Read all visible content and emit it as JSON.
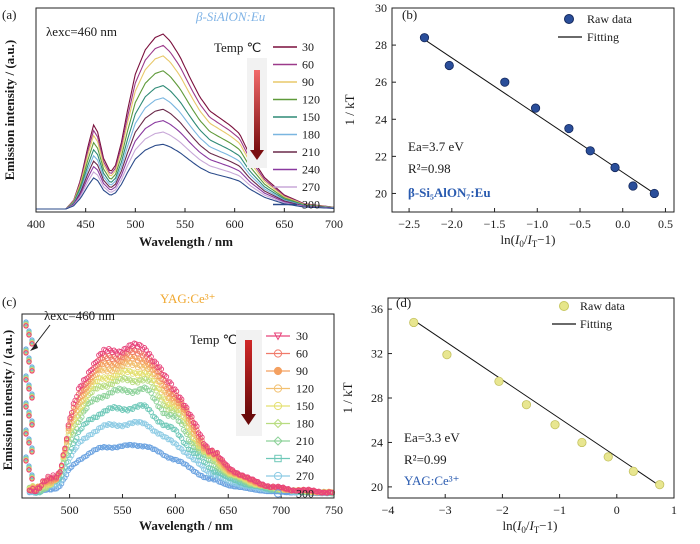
{
  "panels": {
    "a": {
      "label": "(a)",
      "material": "β-SiAlON:Eu",
      "material_color": "#7fb3e6",
      "excitation": "λexc=460 nm",
      "legend_title": "Temp ℃"
    },
    "b": {
      "label": "(b)",
      "ea": "Ea=3.7 eV",
      "r2": "R²=0.98",
      "material": "β-Si₅AlON₇:Eu",
      "material_color": "#2a5bb0",
      "legend": [
        "Raw data",
        "Fitting"
      ]
    },
    "c": {
      "label": "(c)",
      "material": "YAG:Ce³⁺",
      "material_color": "#f0a830",
      "excitation": "λexc=460 nm",
      "legend_title": "Temp ℃"
    },
    "d": {
      "label": "(d)",
      "ea": "Ea=3.3 eV",
      "r2": "R²=0.99",
      "material": "YAG:Ce³⁺",
      "material_color": "#2a5bb0",
      "legend": [
        "Raw data",
        "Fitting"
      ]
    }
  },
  "chart_data": [
    {
      "id": "a",
      "type": "line",
      "xlabel": "Wavelength / nm",
      "ylabel": "Emission intensity / (a.u.)",
      "xlim": [
        400,
        700
      ],
      "xticks": [
        400,
        450,
        500,
        550,
        600,
        650,
        700
      ],
      "series": [
        {
          "name": "30",
          "color": "#7a0f3c",
          "scale": 1.0
        },
        {
          "name": "60",
          "color": "#9c3a8a",
          "scale": 0.935
        },
        {
          "name": "90",
          "color": "#e8c86a",
          "scale": 0.875
        },
        {
          "name": "120",
          "color": "#5f9a3a",
          "scale": 0.79
        },
        {
          "name": "150",
          "color": "#2e8a76",
          "scale": 0.705
        },
        {
          "name": "180",
          "color": "#7ab6e0",
          "scale": 0.635
        },
        {
          "name": "210",
          "color": "#6a2a4a",
          "scale": 0.57
        },
        {
          "name": "240",
          "color": "#8a3aa0",
          "scale": 0.505
        },
        {
          "name": "270",
          "color": "#c8a8d8",
          "scale": 0.44
        },
        {
          "name": "300",
          "color": "#2a4a8a",
          "scale": 0.37
        }
      ],
      "profile_x": [
        400,
        430,
        438,
        445,
        452,
        458,
        462,
        468,
        475,
        480,
        486,
        492,
        500,
        510,
        520,
        528,
        535,
        545,
        555,
        565,
        575,
        585,
        595,
        605,
        615,
        630,
        650,
        670,
        700
      ],
      "profile_y": [
        0.0,
        0.0,
        0.05,
        0.17,
        0.35,
        0.48,
        0.44,
        0.29,
        0.21,
        0.25,
        0.38,
        0.56,
        0.77,
        0.91,
        0.98,
        1.0,
        0.96,
        0.87,
        0.75,
        0.64,
        0.56,
        0.52,
        0.48,
        0.43,
        0.31,
        0.18,
        0.08,
        0.03,
        0.01
      ]
    },
    {
      "id": "b",
      "type": "scatter",
      "xlabel": "ln(I0/IT−1)",
      "ylabel": "1 / kT",
      "xlim": [
        -2.7,
        0.6
      ],
      "ylim": [
        19,
        30
      ],
      "xticks": [
        -2.5,
        -2.0,
        -1.5,
        -1.0,
        -0.5,
        0.0,
        0.5
      ],
      "yticks": [
        20,
        22,
        24,
        26,
        28,
        30
      ],
      "points": [
        {
          "x": -2.32,
          "y": 28.4
        },
        {
          "x": -2.03,
          "y": 26.9
        },
        {
          "x": -1.38,
          "y": 26.0
        },
        {
          "x": -1.02,
          "y": 24.6
        },
        {
          "x": -0.63,
          "y": 23.5
        },
        {
          "x": -0.38,
          "y": 22.3
        },
        {
          "x": -0.09,
          "y": 21.4
        },
        {
          "x": 0.12,
          "y": 20.4
        },
        {
          "x": 0.37,
          "y": 20.0
        }
      ],
      "fit": [
        {
          "x": -2.32,
          "y": 28.3
        },
        {
          "x": 0.37,
          "y": 20.0
        }
      ]
    },
    {
      "id": "c",
      "type": "scatter",
      "xlabel": "Wavelength / nm",
      "ylabel": "Emission intensity / (a.u.)",
      "xlim": [
        455,
        750
      ],
      "xticks": [
        500,
        550,
        600,
        650,
        700,
        750
      ],
      "series": [
        {
          "name": "30",
          "color": "#e8437a",
          "marker": "tri",
          "scale": 1.0
        },
        {
          "name": "60",
          "color": "#f07a6a",
          "marker": "circle",
          "scale": 0.96
        },
        {
          "name": "90",
          "color": "#f4a060",
          "marker": "half",
          "scale": 0.92
        },
        {
          "name": "120",
          "color": "#f2c070",
          "marker": "circle",
          "scale": 0.88
        },
        {
          "name": "150",
          "color": "#e4e070",
          "marker": "circle",
          "scale": 0.83
        },
        {
          "name": "180",
          "color": "#b8dc80",
          "marker": "diamond",
          "scale": 0.78
        },
        {
          "name": "210",
          "color": "#8ed29a",
          "marker": "diamond",
          "scale": 0.71
        },
        {
          "name": "240",
          "color": "#6ec8b8",
          "marker": "square",
          "scale": 0.59
        },
        {
          "name": "270",
          "color": "#8ccbe4",
          "marker": "circle",
          "scale": 0.48
        },
        {
          "name": "300",
          "color": "#6aa2e0",
          "marker": "circle",
          "scale": 0.33
        }
      ],
      "profile_x": [
        462,
        470,
        478,
        485,
        490,
        495,
        500,
        510,
        520,
        530,
        540,
        550,
        560,
        570,
        575,
        580,
        590,
        600,
        605,
        615,
        630,
        650,
        670,
        690,
        710,
        730,
        750
      ],
      "profile_y": [
        0.05,
        0.03,
        0.08,
        0.12,
        0.15,
        0.3,
        0.5,
        0.72,
        0.86,
        0.94,
        0.97,
        0.98,
        0.99,
        1.0,
        0.97,
        0.9,
        0.78,
        0.72,
        0.66,
        0.5,
        0.33,
        0.18,
        0.1,
        0.05,
        0.03,
        0.02,
        0.01
      ]
    },
    {
      "id": "d",
      "type": "scatter",
      "xlabel": "ln(I0/IT−1)",
      "ylabel": "1 / kT",
      "xlim": [
        -4,
        1
      ],
      "ylim": [
        19,
        37
      ],
      "xticks": [
        -4,
        -3,
        -2,
        -1,
        0,
        1
      ],
      "yticks": [
        20,
        24,
        28,
        32,
        36
      ],
      "points": [
        {
          "x": -3.55,
          "y": 34.8
        },
        {
          "x": -2.97,
          "y": 31.9
        },
        {
          "x": -2.06,
          "y": 29.5
        },
        {
          "x": -1.58,
          "y": 27.4
        },
        {
          "x": -1.08,
          "y": 25.6
        },
        {
          "x": -0.61,
          "y": 24.0
        },
        {
          "x": -0.15,
          "y": 22.7
        },
        {
          "x": 0.29,
          "y": 21.4
        },
        {
          "x": 0.75,
          "y": 20.2
        }
      ],
      "fit": [
        {
          "x": -3.55,
          "y": 35.0
        },
        {
          "x": 0.75,
          "y": 20.1
        }
      ]
    }
  ]
}
